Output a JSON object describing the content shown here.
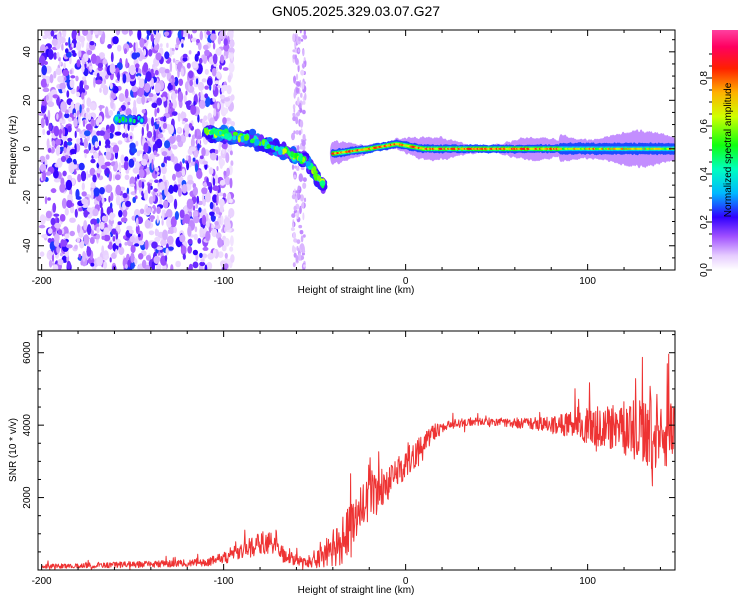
{
  "title": "GN05.2025.329.03.07.G27",
  "chart_data": [
    {
      "type": "heatmap",
      "xlabel": "Height of straight line (km)",
      "ylabel": "Frequency (Hz)",
      "xlim": [
        -202,
        148
      ],
      "ylim": [
        -50,
        49
      ],
      "xticks": [
        -200,
        -100,
        0,
        100
      ],
      "yticks": [
        -40,
        -20,
        0,
        20,
        40
      ],
      "colorbar": {
        "label": "Normalized spectral amplitude",
        "range": [
          0,
          1
        ],
        "ticks": [
          0,
          0.2,
          0.4,
          0.6,
          0.8
        ],
        "tick_labels": [
          "0.0",
          "0.2",
          "0.4",
          "0.6",
          "0.8"
        ]
      },
      "features": [
        {
          "name": "early-noise-region",
          "x_range": [
            -200,
            -95
          ],
          "freq_range": [
            -50,
            49
          ],
          "amplitude": 0.15
        },
        {
          "name": "noise-stripe",
          "x_range": [
            -62,
            -55
          ],
          "freq_range": [
            -50,
            49
          ],
          "amplitude": 0.05
        },
        {
          "name": "isolated-signal",
          "x": [
            -160,
            -145
          ],
          "freq": [
            12,
            12
          ],
          "amplitude": 0.45
        },
        {
          "name": "descending-signal",
          "x": [
            -110,
            -85,
            -70,
            -55,
            -45
          ],
          "freq": [
            7,
            4,
            0,
            -5,
            -15
          ],
          "amplitude": 0.5
        },
        {
          "name": "main-signal-band",
          "x": [
            -40,
            -20,
            -5,
            10,
            50,
            80,
            100,
            148
          ],
          "freq": [
            -2,
            0,
            2,
            0,
            0,
            0,
            0,
            0
          ],
          "amplitude": 0.85
        }
      ]
    },
    {
      "type": "line",
      "xlabel": "Height of straight line (km)",
      "ylabel": "SNR (10 * v/v)",
      "xlim": [
        -202,
        148
      ],
      "ylim": [
        0,
        6600
      ],
      "xticks": [
        -200,
        -100,
        0,
        100
      ],
      "yticks": [
        2000,
        4000,
        6000
      ],
      "series": [
        {
          "name": "SNR",
          "color": "#ee3333",
          "x": [
            -200,
            -150,
            -110,
            -95,
            -85,
            -75,
            -65,
            -55,
            -45,
            -35,
            -25,
            -15,
            -5,
            5,
            15,
            25,
            35,
            50,
            65,
            80,
            95,
            110,
            125,
            135,
            148
          ],
          "mean": [
            100,
            150,
            200,
            400,
            650,
            800,
            350,
            200,
            400,
            800,
            1700,
            2200,
            2700,
            3200,
            3800,
            4050,
            4100,
            4100,
            4050,
            4000,
            4000,
            3950,
            3900,
            3850,
            3700
          ],
          "spread": [
            80,
            110,
            140,
            250,
            400,
            450,
            250,
            150,
            500,
            900,
            900,
            800,
            600,
            500,
            300,
            150,
            150,
            150,
            200,
            300,
            600,
            800,
            1100,
            1500,
            1200
          ]
        }
      ]
    }
  ]
}
